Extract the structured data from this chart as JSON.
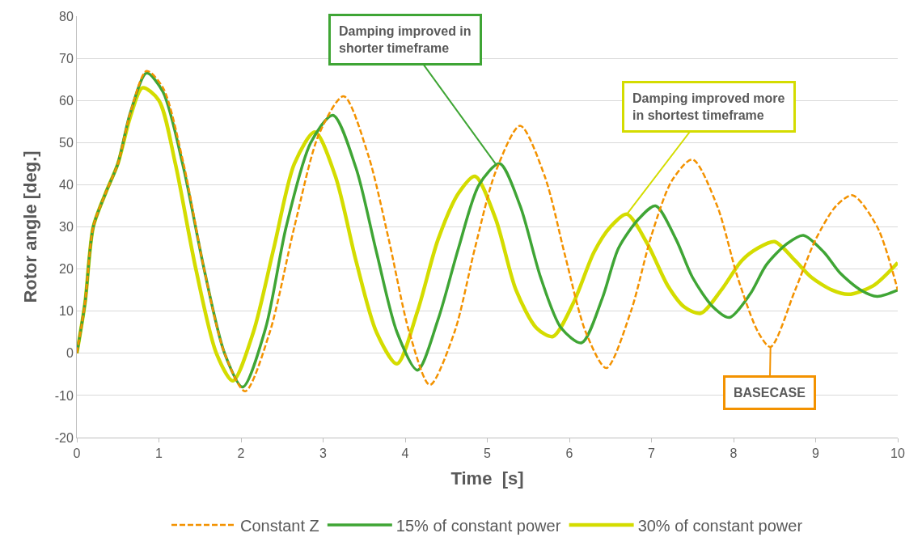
{
  "chart_data": {
    "type": "line",
    "xlabel": "Time  [s]",
    "ylabel": "Rotor angle [deg.]",
    "xlim": [
      0,
      10
    ],
    "ylim": [
      -20,
      80
    ],
    "xticks": [
      0,
      1,
      2,
      3,
      4,
      5,
      6,
      7,
      8,
      9,
      10
    ],
    "yticks": [
      -20,
      -10,
      0,
      10,
      20,
      30,
      40,
      50,
      60,
      70,
      80
    ],
    "grid": "y",
    "legend": "bottom",
    "marker": "none",
    "series": [
      {
        "name": "Constant Z",
        "color": "#f39200",
        "line_style": "dashed",
        "x": [
          0,
          0.1,
          0.2,
          0.35,
          0.5,
          0.65,
          0.85,
          1.05,
          1.3,
          1.55,
          1.8,
          2.05,
          2.35,
          2.65,
          2.95,
          3.25,
          3.55,
          3.8,
          4.05,
          4.3,
          4.6,
          4.85,
          5.1,
          5.4,
          5.7,
          5.95,
          6.2,
          6.45,
          6.75,
          7.0,
          7.25,
          7.5,
          7.8,
          8.05,
          8.3,
          8.45,
          8.75,
          9.0,
          9.25,
          9.45,
          9.75,
          10
        ],
        "values": [
          0,
          12,
          30,
          38,
          45,
          57,
          67,
          63,
          45,
          20,
          0,
          -9,
          5,
          30,
          52,
          61,
          47,
          27,
          5,
          -7.5,
          5,
          25,
          43,
          54,
          42,
          23,
          5,
          -3.5,
          10,
          28,
          41,
          46,
          35,
          18,
          5,
          1.5,
          15,
          27,
          35,
          37.5,
          30,
          15
        ]
      },
      {
        "name": "15% of constant power",
        "color": "#3fa535",
        "line_style": "solid",
        "x": [
          0,
          0.1,
          0.2,
          0.35,
          0.5,
          0.65,
          0.85,
          1.05,
          1.3,
          1.55,
          1.8,
          2.02,
          2.3,
          2.55,
          2.85,
          3.12,
          3.4,
          3.65,
          3.9,
          4.15,
          4.4,
          4.65,
          4.9,
          5.15,
          5.4,
          5.65,
          5.9,
          6.15,
          6.4,
          6.6,
          6.85,
          7.05,
          7.3,
          7.5,
          7.75,
          7.95,
          8.2,
          8.4,
          8.65,
          8.85,
          9.1,
          9.3,
          9.55,
          9.75,
          10
        ],
        "values": [
          0,
          12,
          30,
          38,
          45,
          57,
          66.5,
          62,
          44,
          20,
          0,
          -8,
          6,
          30,
          50,
          56.5,
          44,
          24,
          5,
          -4,
          8,
          25,
          40,
          45,
          35,
          18,
          6,
          2.5,
          13,
          25,
          32,
          35,
          27,
          18,
          11,
          8.5,
          14,
          21,
          26,
          28,
          24,
          19,
          15,
          13.5,
          15
        ]
      },
      {
        "name": "30% of constant power",
        "color": "#d4dc00",
        "line_style": "solid",
        "x": [
          0,
          0.1,
          0.2,
          0.35,
          0.5,
          0.65,
          0.8,
          1.0,
          1.2,
          1.45,
          1.7,
          1.9,
          2.15,
          2.4,
          2.65,
          2.9,
          3.15,
          3.4,
          3.65,
          3.9,
          4.15,
          4.4,
          4.65,
          4.85,
          5.1,
          5.35,
          5.6,
          5.8,
          6.05,
          6.3,
          6.5,
          6.7,
          6.95,
          7.2,
          7.4,
          7.6,
          7.85,
          8.1,
          8.3,
          8.5,
          8.75,
          8.95,
          9.2,
          9.4,
          9.7,
          10
        ],
        "values": [
          0,
          12,
          30,
          38,
          45,
          56,
          63,
          60,
          45,
          20,
          0,
          -6.5,
          5,
          25,
          45,
          52.5,
          42,
          22,
          5,
          -2.5,
          10,
          27,
          38,
          42,
          32,
          15,
          6,
          4,
          12,
          24,
          30,
          33,
          26,
          16,
          11,
          9.5,
          15,
          22,
          25,
          26.5,
          22,
          18,
          15,
          14,
          16,
          21.5
        ]
      }
    ],
    "annotations": [
      {
        "text": "Damping improved in shorter timeframe",
        "x": 5.1,
        "y": 45
      },
      {
        "text": "Damping improved more in shortest timeframe",
        "x": 6.7,
        "y": 33
      },
      {
        "text": "BASECASE",
        "x": 8.45,
        "y": 1.5
      }
    ]
  }
}
